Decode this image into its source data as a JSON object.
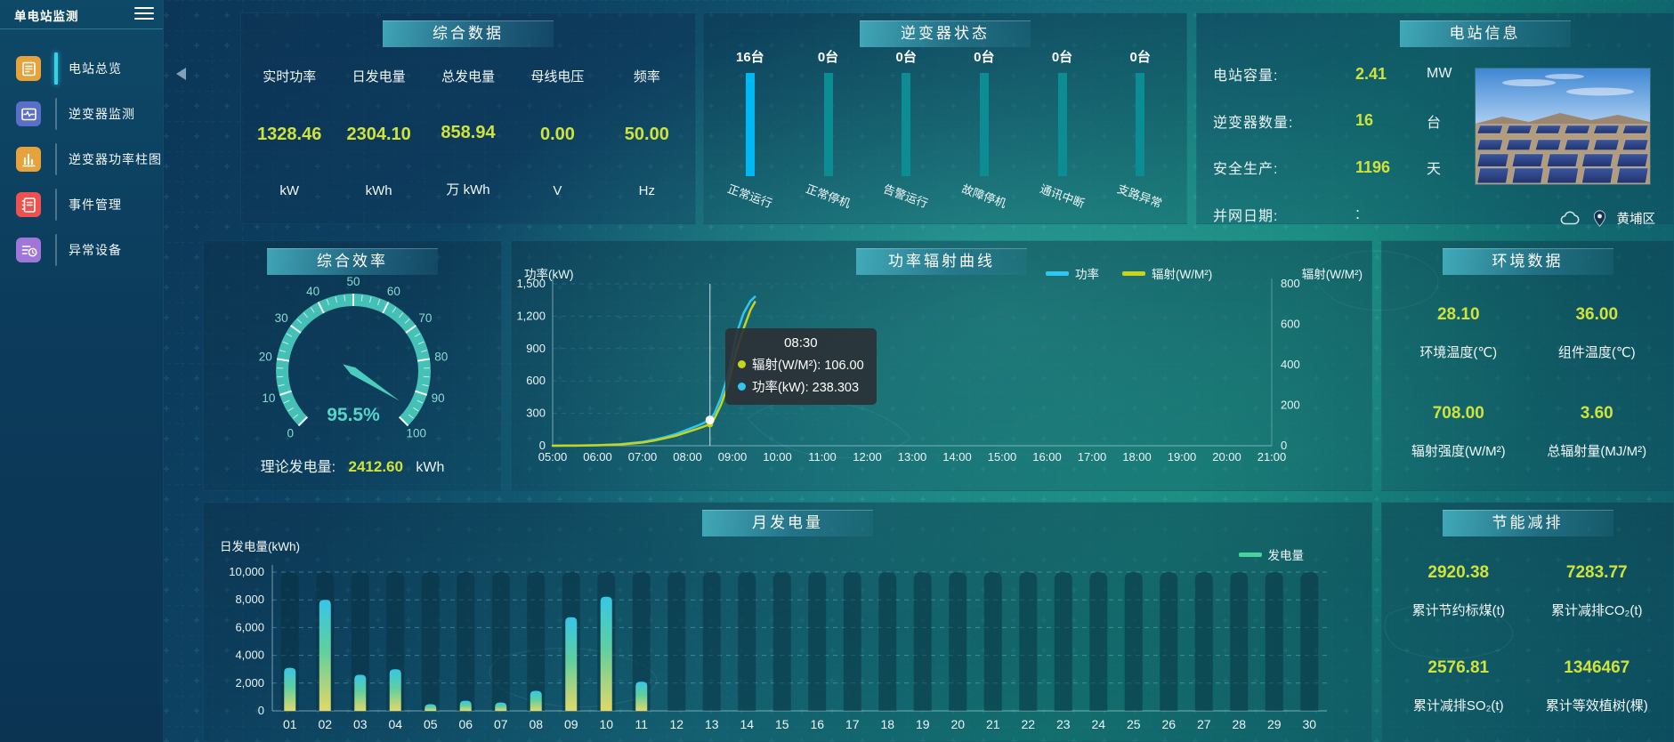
{
  "app": {
    "title": "单电站监测"
  },
  "sidebar": {
    "items": [
      {
        "label": "电站总览",
        "active": true
      },
      {
        "label": "逆变器监测",
        "active": false
      },
      {
        "label": "逆变器功率柱图",
        "active": false
      },
      {
        "label": "事件管理",
        "active": false
      },
      {
        "label": "异常设备",
        "active": false
      }
    ]
  },
  "panels": {
    "summary": {
      "title": "综合数据",
      "metrics": [
        {
          "label": "实时功率",
          "value": "1328.46",
          "unit": "kW"
        },
        {
          "label": "日发电量",
          "value": "2304.10",
          "unit": "kWh"
        },
        {
          "label": "总发电量",
          "value": "858.94",
          "unit": "万 kWh"
        },
        {
          "label": "母线电压",
          "value": "0.00",
          "unit": "V"
        },
        {
          "label": "频率",
          "value": "50.00",
          "unit": "Hz"
        }
      ]
    },
    "inverter_status": {
      "title": "逆变器状态",
      "items": [
        {
          "count": "16台",
          "label": "正常运行",
          "highlight": true
        },
        {
          "count": "0台",
          "label": "正常停机",
          "highlight": false
        },
        {
          "count": "0台",
          "label": "告警运行",
          "highlight": false
        },
        {
          "count": "0台",
          "label": "故障停机",
          "highlight": false
        },
        {
          "count": "0台",
          "label": "通讯中断",
          "highlight": false
        },
        {
          "count": "0台",
          "label": "支路异常",
          "highlight": false
        }
      ]
    },
    "station_info": {
      "title": "电站信息",
      "rows": [
        {
          "label": "电站容量:",
          "value": "2.41",
          "unit": "MW"
        },
        {
          "label": "逆变器数量:",
          "value": "16",
          "unit": "台"
        },
        {
          "label": "安全生产:",
          "value": "1196",
          "unit": "天"
        },
        {
          "label": "并网日期:",
          "value": ":",
          "unit": ""
        }
      ],
      "location": "黄埔区"
    },
    "efficiency": {
      "title": "综合效率",
      "gauge": {
        "value": 95.5,
        "display": "95.5%",
        "min": 0,
        "max": 100,
        "tick_labels": [
          "0",
          "10",
          "20",
          "30",
          "40",
          "50",
          "60",
          "70",
          "80",
          "90",
          "100"
        ]
      },
      "theoretical_label": "理论发电量:",
      "theoretical_value": "2412.60",
      "theoretical_unit": "kWh"
    },
    "environment": {
      "title": "环境数据",
      "items": [
        {
          "value": "28.10",
          "label": "环境温度(℃)"
        },
        {
          "value": "36.00",
          "label": "组件温度(℃)"
        },
        {
          "value": "708.00",
          "label": "辐射强度(W/M²)"
        },
        {
          "value": "3.60",
          "label": "总辐射量(MJ/M²)"
        }
      ]
    },
    "energy_saving": {
      "title": "节能减排",
      "items": [
        {
          "value": "2920.38",
          "label": "累计节约标煤(t)"
        },
        {
          "value": "7283.77",
          "label": "累计减排CO₂(t)"
        },
        {
          "value": "2576.81",
          "label": "累计减排SO₂(t)"
        },
        {
          "value": "1346467",
          "label": "累计等效植树(棵)"
        }
      ]
    }
  },
  "chart_data": [
    {
      "type": "line",
      "title": "功率辐射曲线",
      "ylabel_left": "功率(kW)",
      "ylabel_right": "辐射(W/M²)",
      "yticks_left": [
        "0",
        "300",
        "600",
        "900",
        "1,200",
        "1,500"
      ],
      "yticks_right": [
        "0",
        "200",
        "400",
        "600",
        "800"
      ],
      "ylim_left": [
        0,
        1500
      ],
      "ylim_right": [
        0,
        800
      ],
      "x_range": [
        5,
        21
      ],
      "xticks": [
        "05:00",
        "06:00",
        "07:00",
        "08:00",
        "09:00",
        "10:00",
        "11:00",
        "12:00",
        "13:00",
        "14:00",
        "15:00",
        "16:00",
        "17:00",
        "18:00",
        "19:00",
        "20:00",
        "21:00"
      ],
      "legend_position": "top-right",
      "grid": true,
      "series": [
        {
          "name": "功率",
          "color": "#2ec7f2",
          "axis": "left",
          "points": [
            [
              5,
              0
            ],
            [
              5.5,
              1
            ],
            [
              6,
              5
            ],
            [
              6.5,
              13
            ],
            [
              7,
              35
            ],
            [
              7.25,
              55
            ],
            [
              7.5,
              80
            ],
            [
              7.75,
              110
            ],
            [
              8,
              150
            ],
            [
              8.25,
              190
            ],
            [
              8.5,
              238.303
            ],
            [
              8.6,
              300
            ],
            [
              8.75,
              450
            ],
            [
              8.9,
              650
            ],
            [
              9,
              850
            ],
            [
              9.1,
              1050
            ],
            [
              9.25,
              1230
            ],
            [
              9.4,
              1340
            ],
            [
              9.5,
              1380
            ]
          ]
        },
        {
          "name": "辐射(W/M²)",
          "color": "#c8d41c",
          "axis": "right",
          "points": [
            [
              5,
              0
            ],
            [
              5.5,
              0.5
            ],
            [
              6,
              2
            ],
            [
              6.5,
              6
            ],
            [
              7,
              16
            ],
            [
              7.25,
              25
            ],
            [
              7.5,
              37
            ],
            [
              7.75,
              50
            ],
            [
              8,
              68
            ],
            [
              8.25,
              86
            ],
            [
              8.5,
              106
            ],
            [
              8.6,
              135
            ],
            [
              8.75,
              205
            ],
            [
              8.9,
              300
            ],
            [
              9,
              390
            ],
            [
              9.1,
              480
            ],
            [
              9.25,
              580
            ],
            [
              9.4,
              670
            ],
            [
              9.5,
              710
            ]
          ]
        }
      ],
      "crosshair_x": 8.5,
      "tooltip": {
        "time": "08:30",
        "rows": [
          {
            "dot": "#c8d41c",
            "text": "辐射(W/M²): 106.00"
          },
          {
            "dot": "#2ec7f2",
            "text": "功率(kW): 238.303"
          }
        ]
      }
    },
    {
      "type": "bar",
      "title": "月发电量",
      "ylabel": "日发电量(kWh)",
      "legend": "发电量",
      "legend_color": "#49d2a0",
      "yticks": [
        "0",
        "2,000",
        "4,000",
        "6,000",
        "8,000",
        "10,000"
      ],
      "ylim": [
        0,
        10000
      ],
      "grid": true,
      "categories": [
        "01",
        "02",
        "03",
        "04",
        "05",
        "06",
        "07",
        "08",
        "09",
        "10",
        "11",
        "12",
        "13",
        "14",
        "15",
        "16",
        "17",
        "18",
        "19",
        "20",
        "21",
        "22",
        "23",
        "24",
        "25",
        "26",
        "27",
        "28",
        "29",
        "30"
      ],
      "values": [
        3100,
        8000,
        2600,
        3000,
        480,
        730,
        600,
        1440,
        6750,
        8220,
        2100,
        0,
        0,
        0,
        0,
        0,
        0,
        0,
        0,
        0,
        0,
        0,
        0,
        0,
        0,
        0,
        0,
        0,
        0,
        0
      ]
    }
  ],
  "colors": {
    "accent_yellow": "#cfe33c",
    "status_running_bar": "#00b9f2",
    "status_idle_bar": "#0c8c93",
    "gauge": "#4accbe",
    "bar_gradient_bottom": "#e2d868",
    "bar_gradient_top": "#38c6e6"
  }
}
